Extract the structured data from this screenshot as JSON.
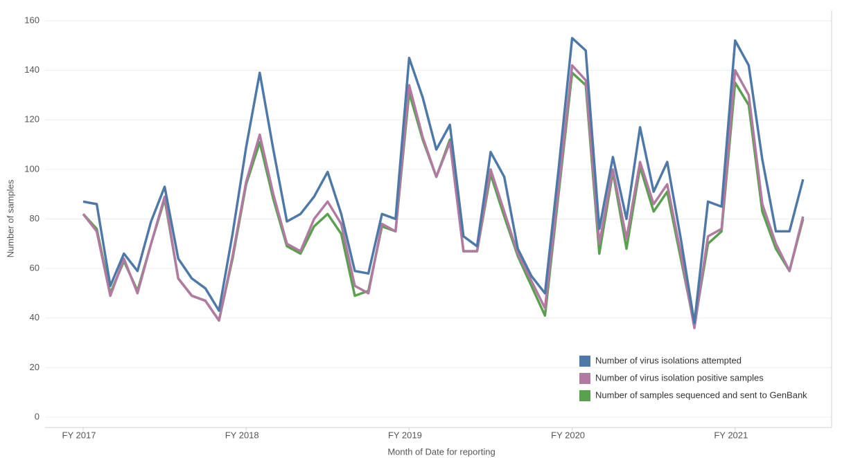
{
  "chart_data": {
    "type": "line",
    "x_label": "Month of Date for reporting",
    "y_label": "Number of samples",
    "categories": [
      "FY 2017",
      null,
      null,
      null,
      null,
      null,
      null,
      null,
      null,
      null,
      null,
      null,
      "FY 2018",
      null,
      null,
      null,
      null,
      null,
      null,
      null,
      null,
      null,
      null,
      null,
      "FY 2019",
      null,
      null,
      null,
      null,
      null,
      null,
      null,
      null,
      null,
      null,
      null,
      "FY 2020",
      null,
      null,
      null,
      null,
      null,
      null,
      null,
      null,
      null,
      null,
      null,
      "FY 2021",
      null,
      null,
      null,
      null,
      null
    ],
    "series": [
      {
        "name": "Number of virus isolations attempted",
        "color": "#4e79a7",
        "values": [
          87,
          86,
          53,
          66,
          59,
          79,
          93,
          64,
          56,
          52,
          43,
          74,
          109,
          139,
          108,
          79,
          82,
          89,
          99,
          82,
          59,
          58,
          82,
          80,
          145,
          129,
          108,
          118,
          73,
          69,
          107,
          97,
          68,
          57,
          50,
          100,
          153,
          148,
          76,
          105,
          80,
          117,
          91,
          103,
          72,
          38,
          87,
          85,
          152,
          142,
          104,
          75,
          75,
          96
        ]
      },
      {
        "name": "Number of virus isolation positive samples",
        "color": "#b07aa1",
        "values": [
          82,
          75,
          49,
          64,
          50,
          70,
          89,
          56,
          49,
          47,
          39,
          65,
          95,
          114,
          90,
          70,
          67,
          80,
          87,
          78,
          53,
          50,
          78,
          75,
          134,
          113,
          97,
          111,
          67,
          67,
          100,
          83,
          66,
          55,
          44,
          92,
          142,
          136,
          70,
          100,
          72,
          103,
          86,
          94,
          66,
          36,
          73,
          76,
          140,
          130,
          86,
          70,
          59,
          81
        ]
      },
      {
        "name": "Number of samples sequenced and sent to GenBank",
        "color": "#59a14f",
        "values": [
          82,
          76,
          50,
          63,
          51,
          70,
          88,
          56,
          49,
          47,
          39,
          64,
          94,
          111,
          88,
          69,
          66,
          77,
          82,
          74,
          49,
          51,
          77,
          75,
          131,
          112,
          97,
          112,
          67,
          67,
          98,
          81,
          65,
          53,
          41,
          90,
          139,
          134,
          66,
          99,
          68,
          101,
          83,
          91,
          64,
          37,
          70,
          75,
          135,
          126,
          83,
          68,
          59,
          80
        ]
      }
    ],
    "ylim": [
      0,
      160
    ],
    "yticks": [
      0,
      20,
      40,
      60,
      80,
      100,
      120,
      140,
      160
    ],
    "grid": true,
    "legend": "lower right"
  }
}
